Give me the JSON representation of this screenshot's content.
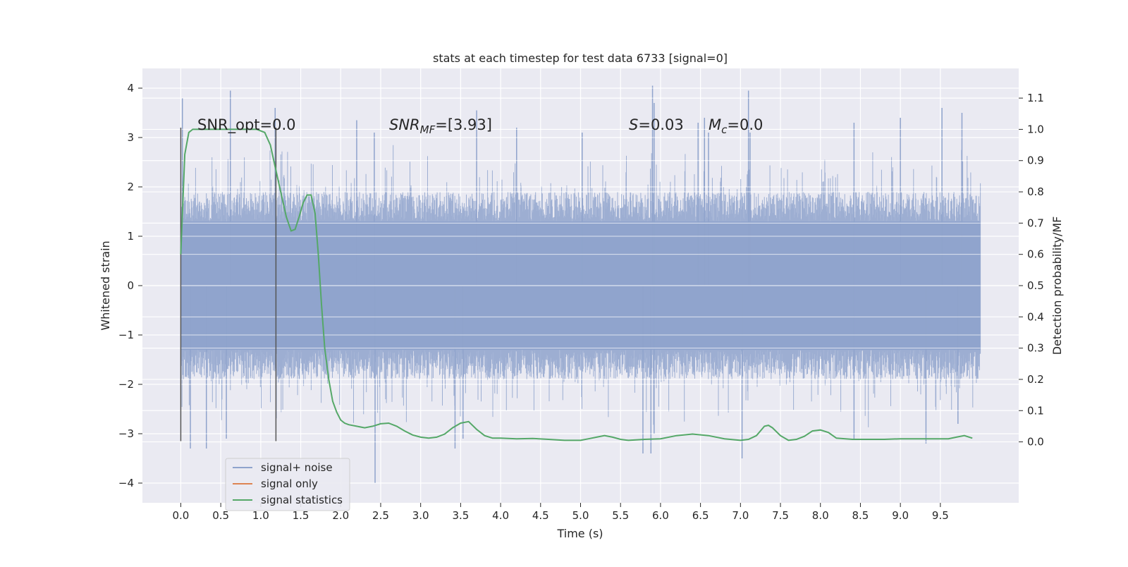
{
  "chart_data": {
    "type": "line",
    "title": "stats at each timestep for test data 6733 [signal=0]",
    "xlabel": "Time (s)",
    "ylabel_left": "Whitened strain",
    "ylabel_right": "Detection probability/MF",
    "xlim": [
      -0.48,
      10.48
    ],
    "ylim_left": [
      -4.4,
      4.4
    ],
    "ylim_right": [
      -0.195,
      1.195
    ],
    "grid": true,
    "legend_placement": "lower-left",
    "x_ticks": [
      "0.0",
      "0.5",
      "1.0",
      "1.5",
      "2.0",
      "2.5",
      "3.0",
      "3.5",
      "4.0",
      "4.5",
      "5.0",
      "5.5",
      "6.0",
      "6.5",
      "7.0",
      "7.5",
      "8.0",
      "8.5",
      "9.0",
      "9.5"
    ],
    "y_ticks_left": [
      "−4",
      "−3",
      "−2",
      "−1",
      "0",
      "1",
      "2",
      "3",
      "4"
    ],
    "y_ticks_right": [
      "0.0",
      "0.1",
      "0.2",
      "0.3",
      "0.4",
      "0.5",
      "0.6",
      "0.7",
      "0.8",
      "0.9",
      "1.0",
      "1.1"
    ],
    "annotations": {
      "snr_opt": "SNR_opt=0.0",
      "snr_mf_label": "SNR",
      "snr_mf_sub": "MF",
      "snr_mf_value": "=[3.93]",
      "s_label": "S",
      "s_value": "=0.03",
      "mc_label": "M",
      "mc_sub": "c",
      "mc_value": "=0.0"
    },
    "markers": {
      "vertical_lines_x": [
        0.0,
        1.19
      ],
      "ymin": -3.15,
      "ymax": 3.2
    },
    "series": [
      {
        "name": "signal+ noise",
        "color": "#8fa3cc",
        "x_range": [
          0.0,
          10.0
        ],
        "envelope_typical": [
          -1.9,
          1.9
        ],
        "peaks_x": [
          0.02,
          0.62,
          1.18,
          2.2,
          2.42,
          3.7,
          4.2,
          5.02,
          5.9,
          5.92,
          6.47,
          6.55,
          6.6,
          7.1,
          7.12,
          8.42,
          9.0,
          9.52,
          9.77
        ],
        "peaks_y": [
          3.8,
          3.95,
          3.6,
          3.35,
          3.1,
          3.55,
          3.2,
          3.1,
          4.05,
          3.7,
          3.3,
          3.4,
          3.1,
          3.95,
          3.1,
          3.3,
          3.4,
          3.6,
          3.5
        ],
        "troughs_x": [
          0.12,
          0.32,
          0.57,
          2.43,
          3.43,
          3.53,
          5.78,
          5.88,
          5.92,
          7.02,
          8.42,
          9.32,
          9.72
        ],
        "troughs_y": [
          -3.3,
          -3.3,
          -3.1,
          -4.0,
          -3.3,
          -3.1,
          -3.4,
          -3.4,
          -3.0,
          -3.5,
          -3.1,
          -3.2,
          -2.8
        ]
      },
      {
        "name": "signal only",
        "color": "#dd8452",
        "x": [],
        "y": []
      },
      {
        "name": "signal statistics",
        "color": "#55a868",
        "axis": "right",
        "x": [
          0.0,
          0.05,
          0.1,
          0.15,
          0.2,
          0.3,
          0.5,
          0.7,
          0.85,
          0.95,
          1.05,
          1.12,
          1.18,
          1.25,
          1.32,
          1.38,
          1.43,
          1.48,
          1.53,
          1.58,
          1.63,
          1.68,
          1.72,
          1.76,
          1.8,
          1.85,
          1.9,
          1.95,
          2.0,
          2.05,
          2.1,
          2.2,
          2.3,
          2.4,
          2.5,
          2.6,
          2.7,
          2.8,
          2.9,
          3.0,
          3.1,
          3.2,
          3.3,
          3.4,
          3.5,
          3.6,
          3.7,
          3.8,
          3.9,
          4.0,
          4.2,
          4.4,
          4.6,
          4.8,
          5.0,
          5.1,
          5.2,
          5.3,
          5.4,
          5.5,
          5.6,
          5.8,
          6.0,
          6.2,
          6.4,
          6.6,
          6.8,
          7.0,
          7.1,
          7.2,
          7.3,
          7.35,
          7.4,
          7.5,
          7.6,
          7.7,
          7.8,
          7.9,
          8.0,
          8.1,
          8.2,
          8.4,
          8.6,
          8.8,
          9.0,
          9.2,
          9.4,
          9.6,
          9.7,
          9.8,
          9.9
        ],
        "y": [
          0.6,
          0.92,
          0.99,
          1.0,
          1.0,
          1.0,
          1.0,
          1.0,
          1.0,
          1.0,
          0.99,
          0.95,
          0.88,
          0.8,
          0.72,
          0.675,
          0.68,
          0.72,
          0.765,
          0.79,
          0.79,
          0.73,
          0.6,
          0.44,
          0.3,
          0.2,
          0.13,
          0.095,
          0.07,
          0.06,
          0.055,
          0.05,
          0.045,
          0.05,
          0.058,
          0.06,
          0.05,
          0.035,
          0.022,
          0.015,
          0.012,
          0.015,
          0.025,
          0.045,
          0.06,
          0.065,
          0.04,
          0.02,
          0.012,
          0.012,
          0.01,
          0.011,
          0.008,
          0.005,
          0.005,
          0.01,
          0.015,
          0.02,
          0.015,
          0.008,
          0.005,
          0.008,
          0.01,
          0.02,
          0.025,
          0.02,
          0.01,
          0.005,
          0.008,
          0.02,
          0.05,
          0.053,
          0.045,
          0.02,
          0.005,
          0.008,
          0.018,
          0.035,
          0.038,
          0.03,
          0.012,
          0.008,
          0.008,
          0.008,
          0.01,
          0.01,
          0.01,
          0.01,
          0.015,
          0.02,
          0.012
        ]
      }
    ]
  }
}
